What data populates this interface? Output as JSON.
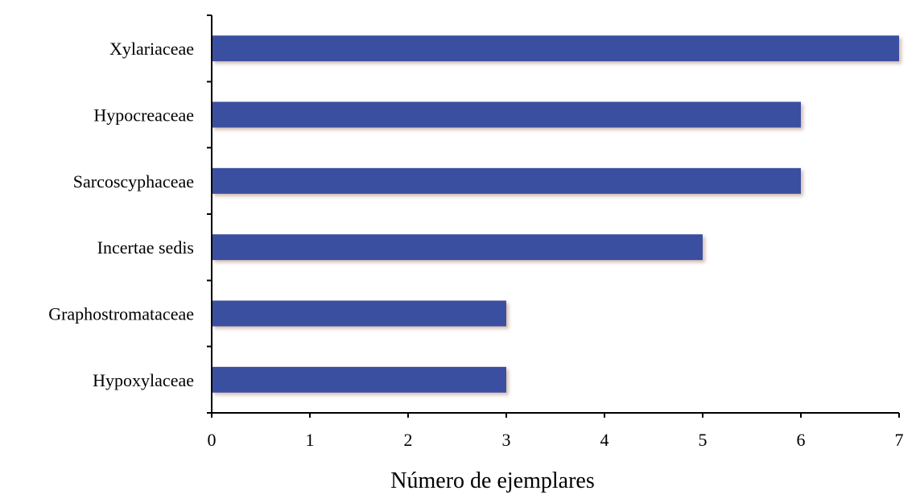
{
  "chart_data": {
    "type": "bar",
    "orientation": "horizontal",
    "title": "",
    "xlabel": "Número de ejemplares",
    "ylabel": "",
    "categories": [
      "Xylariaceae",
      "Hypocreaceae",
      "Sarcoscyphaceae",
      "Incertae sedis",
      "Graphostromataceae",
      "Hypoxylaceae"
    ],
    "values": [
      7,
      6,
      6,
      5,
      3,
      3
    ],
    "xlim": [
      0,
      7
    ],
    "xticks": [
      "0",
      "1",
      "2",
      "3",
      "4",
      "5",
      "6",
      "7"
    ],
    "grid": false,
    "legend": "none",
    "bar_color": "#3a4fa0",
    "bar_shadow_color": "#c9a9a0"
  }
}
